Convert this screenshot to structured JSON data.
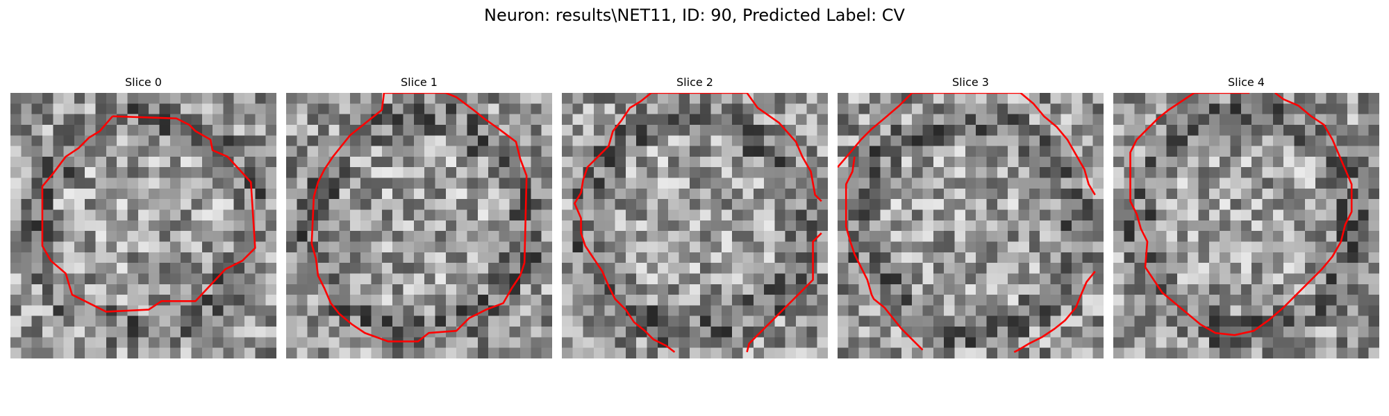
{
  "figure": {
    "title": "Neuron: results\\NET11, ID: 90, Predicted Label: CV"
  },
  "panels": [
    {
      "title": "Slice 0",
      "seed": 11,
      "contour_color": "#ff0000",
      "contour": [
        [
          9.6,
          2.2
        ],
        [
          15.6,
          2.4
        ],
        [
          16.8,
          3.0
        ],
        [
          17.4,
          3.6
        ],
        [
          18.8,
          4.4
        ],
        [
          19.0,
          5.4
        ],
        [
          20.4,
          6.0
        ],
        [
          22.6,
          8.4
        ],
        [
          23.0,
          14.6
        ],
        [
          21.8,
          15.8
        ],
        [
          20.2,
          16.6
        ],
        [
          17.4,
          19.6
        ],
        [
          14.2,
          19.6
        ],
        [
          13.0,
          20.4
        ],
        [
          9.0,
          20.6
        ],
        [
          7.4,
          19.8
        ],
        [
          5.8,
          19.0
        ],
        [
          5.2,
          17.0
        ],
        [
          3.8,
          15.8
        ],
        [
          3.0,
          14.4
        ],
        [
          3.0,
          8.8
        ],
        [
          4.0,
          7.6
        ],
        [
          5.2,
          6.0
        ],
        [
          6.4,
          5.2
        ],
        [
          7.4,
          4.2
        ],
        [
          8.4,
          3.6
        ],
        [
          9.6,
          2.2
        ]
      ]
    },
    {
      "title": "Slice 1",
      "seed": 23,
      "contour_color": "#ff0000",
      "contour": [
        [
          9.2,
          0.0
        ],
        [
          15.0,
          0.0
        ],
        [
          16.0,
          0.4
        ],
        [
          17.6,
          1.6
        ],
        [
          18.6,
          2.4
        ],
        [
          20.0,
          3.4
        ],
        [
          21.6,
          4.6
        ],
        [
          22.0,
          6.2
        ],
        [
          22.6,
          7.8
        ],
        [
          22.4,
          16.0
        ],
        [
          22.0,
          17.2
        ],
        [
          21.2,
          18.4
        ],
        [
          20.4,
          19.8
        ],
        [
          18.8,
          20.4
        ],
        [
          17.2,
          21.2
        ],
        [
          16.0,
          22.4
        ],
        [
          13.4,
          22.6
        ],
        [
          12.4,
          23.4
        ],
        [
          9.6,
          23.4
        ],
        [
          7.4,
          22.6
        ],
        [
          6.2,
          21.8
        ],
        [
          5.0,
          20.8
        ],
        [
          4.2,
          19.8
        ],
        [
          3.6,
          18.4
        ],
        [
          3.0,
          17.2
        ],
        [
          2.8,
          15.6
        ],
        [
          2.4,
          14.2
        ],
        [
          2.6,
          9.8
        ],
        [
          3.0,
          8.4
        ],
        [
          3.6,
          7.2
        ],
        [
          4.4,
          6.0
        ],
        [
          5.2,
          5.0
        ],
        [
          6.0,
          4.0
        ],
        [
          7.0,
          3.2
        ],
        [
          8.0,
          2.4
        ],
        [
          9.0,
          1.6
        ],
        [
          9.2,
          0.0
        ]
      ]
    },
    {
      "title": "Slice 2",
      "seed": 37,
      "contour_color": "#ff0000",
      "contour": [
        [
          5.6,
          2.6
        ],
        [
          6.4,
          1.4
        ],
        [
          7.4,
          0.8
        ],
        [
          8.4,
          0.0
        ],
        [
          17.4,
          0.0
        ],
        [
          18.4,
          1.4
        ],
        [
          20.4,
          2.8
        ],
        [
          22.0,
          4.6
        ],
        [
          22.6,
          6.0
        ],
        [
          23.4,
          7.4
        ],
        [
          23.8,
          9.6
        ],
        [
          24.4,
          10.2
        ]
      ]
    },
    {
      "title": "Slice 3",
      "seed": 41,
      "contour_color": "#ff0000",
      "contour": [
        [
          0.0,
          7.0
        ],
        [
          1.2,
          5.6
        ],
        [
          2.2,
          4.4
        ],
        [
          3.2,
          3.4
        ],
        [
          4.4,
          2.4
        ],
        [
          5.8,
          1.2
        ],
        [
          7.0,
          0.0
        ],
        [
          17.2,
          0.0
        ],
        [
          18.4,
          1.0
        ],
        [
          19.4,
          2.2
        ],
        [
          20.6,
          3.2
        ],
        [
          21.6,
          4.4
        ],
        [
          22.4,
          5.8
        ],
        [
          23.2,
          7.2
        ],
        [
          23.6,
          8.6
        ],
        [
          24.2,
          9.6
        ]
      ]
    },
    {
      "title": "Slice 4",
      "seed": 53,
      "contour_color": "#ff0000",
      "contour": [
        [
          12.8,
          0.0
        ],
        [
          7.6,
          0.0
        ],
        [
          6.4,
          0.8
        ],
        [
          5.2,
          1.6
        ],
        [
          4.2,
          2.4
        ],
        [
          3.2,
          3.4
        ],
        [
          2.2,
          4.4
        ],
        [
          1.6,
          5.6
        ],
        [
          1.6,
          10.2
        ],
        [
          2.2,
          11.4
        ],
        [
          2.6,
          12.8
        ],
        [
          3.2,
          14.0
        ],
        [
          3.0,
          16.4
        ],
        [
          3.8,
          17.6
        ],
        [
          4.6,
          18.8
        ],
        [
          5.8,
          19.8
        ],
        [
          7.0,
          20.8
        ],
        [
          8.2,
          21.8
        ],
        [
          9.6,
          22.6
        ],
        [
          11.4,
          22.8
        ],
        [
          13.2,
          22.4
        ],
        [
          14.6,
          21.4
        ],
        [
          16.0,
          20.2
        ],
        [
          17.2,
          19.0
        ],
        [
          18.4,
          17.8
        ],
        [
          19.6,
          16.6
        ],
        [
          20.6,
          15.4
        ],
        [
          21.4,
          14.0
        ],
        [
          21.8,
          12.4
        ],
        [
          22.4,
          11.2
        ],
        [
          22.4,
          8.6
        ],
        [
          21.8,
          7.2
        ],
        [
          21.2,
          5.8
        ],
        [
          20.6,
          4.4
        ],
        [
          19.8,
          3.0
        ],
        [
          18.6,
          2.2
        ],
        [
          17.4,
          1.2
        ],
        [
          16.0,
          0.6
        ],
        [
          15.2,
          0.0
        ]
      ]
    }
  ]
}
